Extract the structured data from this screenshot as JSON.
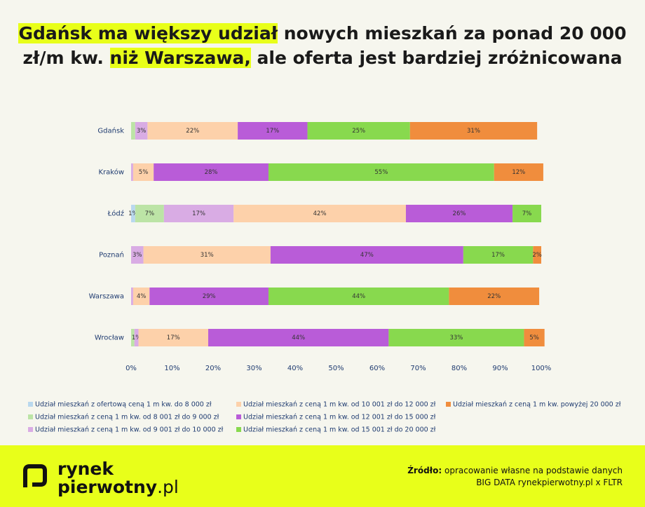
{
  "chart_data": {
    "type": "stacked_barh",
    "title": [
      "Gdańsk ma większy udział",
      " nowych mieszkań za ponad 20 000 zł/m kw. ",
      "niż Warszawa,",
      " ale oferta jest bardziej zróżnicowana"
    ],
    "title_highlight": [
      true,
      false,
      true,
      false
    ],
    "categories": [
      "Gdańsk",
      "Kraków",
      "Łódź",
      "Poznań",
      "Warszawa",
      "Wrocław"
    ],
    "series": [
      {
        "name": "Udział mieszkań z ofertową ceną 1 m kw. do 8 000 zł",
        "color": "#b9d8ee",
        "values": [
          null,
          null,
          1,
          null,
          null,
          null
        ],
        "value_labels": [
          null,
          null,
          "1%",
          null,
          null,
          null
        ]
      },
      {
        "name": "Udział mieszkań z ceną 1 m kw. od 8 001 zł do 9 000 zł",
        "color": "#bce4a6",
        "values": [
          1,
          null,
          7,
          null,
          null,
          0.8
        ],
        "value_labels": [
          null,
          null,
          "7%",
          null,
          null,
          null
        ]
      },
      {
        "name": "Udział mieszkań z ceną 1 m kw. od 9 001 zł do 10 000 zł",
        "color": "#d9ace4",
        "values": [
          3,
          0.5,
          17,
          3,
          0.5,
          1
        ],
        "value_labels": [
          "3%",
          null,
          "17%",
          "3%",
          null,
          "1%"
        ]
      },
      {
        "name": "Udział mieszkań z ceną 1 m kw. od 10 001 zł do 12 000 zł",
        "color": "#fdd1aa",
        "values": [
          22,
          5,
          42,
          31,
          4,
          17
        ],
        "value_labels": [
          "22%",
          "5%",
          "42%",
          "31%",
          "4%",
          "17%"
        ]
      },
      {
        "name": "Udział mieszkań z ceną 1 m kw. od 12 001 zł do 15 000 zł",
        "color": "#b95cd8",
        "values": [
          17,
          28,
          26,
          47,
          29,
          44
        ],
        "value_labels": [
          "17%",
          "28%",
          "26%",
          "47%",
          "29%",
          "44%"
        ]
      },
      {
        "name": "Udział mieszkań z ceną 1 m kw. od 15 001 zł do 20 000 zł",
        "color": "#88d94e",
        "values": [
          25,
          55,
          7,
          17,
          44,
          33
        ],
        "value_labels": [
          "25%",
          "55%",
          "7%",
          "17%",
          "44%",
          "33%"
        ]
      },
      {
        "name": "Udział mieszkań z ceną 1 m kw. powyżej 20 000 zł",
        "color": "#f08d3d",
        "values": [
          31,
          12,
          null,
          2,
          22,
          5
        ],
        "value_labels": [
          "31%",
          "12%",
          null,
          "2%",
          "22%",
          "5%"
        ]
      }
    ],
    "xlim": [
      0,
      100
    ],
    "xticks": [
      {
        "value": 0,
        "label": "0%"
      },
      {
        "value": 10,
        "label": "10%"
      },
      {
        "value": 20,
        "label": "20%"
      },
      {
        "value": 30,
        "label": "30%"
      },
      {
        "value": 40,
        "label": "40%"
      },
      {
        "value": 50,
        "label": "50%"
      },
      {
        "value": 60,
        "label": "60%"
      },
      {
        "value": 70,
        "label": "70%"
      },
      {
        "value": 80,
        "label": "80%"
      },
      {
        "value": 90,
        "label": "90%"
      },
      {
        "value": 100,
        "label": "100%"
      }
    ],
    "legend": "bottom"
  },
  "branding": {
    "line1": "rynek",
    "line2": "pierwotny",
    "line2_suffix": ".pl"
  },
  "source": {
    "label": "Źródło:",
    "line1": " opracowanie własne na podstawie danych",
    "line2": "BIG DATA rynekpierwotny.pl x FLTR"
  }
}
